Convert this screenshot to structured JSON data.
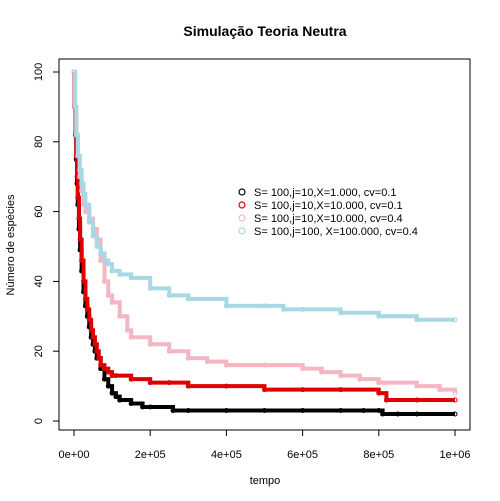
{
  "chart_data": {
    "type": "line",
    "title": "Simulação Teoria Neutra",
    "xlabel": "tempo",
    "ylabel": "Número de espécies",
    "xlim": [
      0,
      1000000
    ],
    "ylim": [
      0,
      100
    ],
    "x_ticks": [
      0,
      200000,
      400000,
      600000,
      800000,
      1000000
    ],
    "x_tick_labels": [
      "0e+00",
      "2e+05",
      "4e+05",
      "6e+05",
      "8e+05",
      "1e+06"
    ],
    "y_ticks": [
      0,
      20,
      40,
      60,
      80,
      100
    ],
    "y_tick_labels": [
      "0",
      "20",
      "40",
      "60",
      "80",
      "100"
    ],
    "grid": false,
    "legend_position": "right",
    "series": [
      {
        "name": "S= 100,j=10,X=1.000, cv=0.1",
        "color": "#000000",
        "x": [
          0,
          2000,
          4000,
          6000,
          8000,
          10000,
          13000,
          16000,
          20000,
          25000,
          30000,
          35000,
          40000,
          45000,
          50000,
          55000,
          60000,
          70000,
          80000,
          90000,
          100000,
          110000,
          120000,
          150000,
          180000,
          200000,
          260000,
          300000,
          400000,
          500000,
          600000,
          700000,
          760000,
          800000,
          810000,
          850000,
          900000,
          1000000
        ],
        "values": [
          100,
          90,
          82,
          75,
          68,
          62,
          55,
          49,
          43,
          37,
          33,
          30,
          27,
          24,
          22,
          20,
          18,
          15,
          12,
          10,
          8,
          7,
          6,
          5,
          4,
          4,
          3,
          3,
          3,
          3,
          3,
          3,
          3,
          3,
          2,
          2,
          2,
          2
        ]
      },
      {
        "name": "S= 100,j=10,X=10.000, cv=0.1",
        "color": "#dd0000",
        "x": [
          0,
          2000,
          4000,
          6000,
          8000,
          10000,
          13000,
          16000,
          20000,
          25000,
          30000,
          35000,
          40000,
          45000,
          50000,
          55000,
          60000,
          65000,
          70000,
          80000,
          90000,
          100000,
          110000,
          150000,
          200000,
          250000,
          300000,
          400000,
          500000,
          600000,
          700000,
          800000,
          820000,
          900000,
          1000000
        ],
        "values": [
          100,
          90,
          82,
          76,
          70,
          64,
          58,
          52,
          46,
          40,
          35,
          32,
          29,
          26,
          24,
          22,
          20,
          18,
          16,
          15,
          14,
          13,
          13,
          12,
          11,
          11,
          10,
          10,
          9,
          9,
          9,
          8,
          6,
          6,
          6
        ]
      },
      {
        "name": "S= 100,j=10,X=10.000, cv=0.4",
        "color": "#f4b6c2",
        "x": [
          0,
          3000,
          6000,
          10000,
          15000,
          20000,
          25000,
          30000,
          40000,
          50000,
          60000,
          70000,
          80000,
          90000,
          100000,
          120000,
          140000,
          150000,
          200000,
          250000,
          300000,
          350000,
          400000,
          500000,
          600000,
          650000,
          700000,
          750000,
          800000,
          900000,
          960000,
          1000000
        ],
        "values": [
          100,
          90,
          82,
          76,
          70,
          66,
          62,
          60,
          58,
          55,
          52,
          46,
          40,
          36,
          34,
          30,
          26,
          24,
          22,
          20,
          18,
          17,
          16,
          16,
          15,
          14,
          13,
          12,
          11,
          10,
          9,
          8
        ]
      },
      {
        "name": "S= 100,j=100, X=100.000, cv=0.4",
        "color": "#a8d8e4",
        "x": [
          0,
          3000,
          6000,
          10000,
          15000,
          20000,
          25000,
          30000,
          40000,
          50000,
          60000,
          70000,
          80000,
          90000,
          100000,
          120000,
          150000,
          200000,
          250000,
          300000,
          400000,
          500000,
          550000,
          600000,
          700000,
          800000,
          900000,
          1000000
        ],
        "values": [
          100,
          90,
          82,
          76,
          72,
          68,
          65,
          62,
          57,
          53,
          50,
          48,
          46,
          45,
          43,
          42,
          41,
          38,
          36,
          35,
          33,
          33,
          32,
          32,
          31,
          30,
          29,
          29
        ]
      }
    ]
  }
}
